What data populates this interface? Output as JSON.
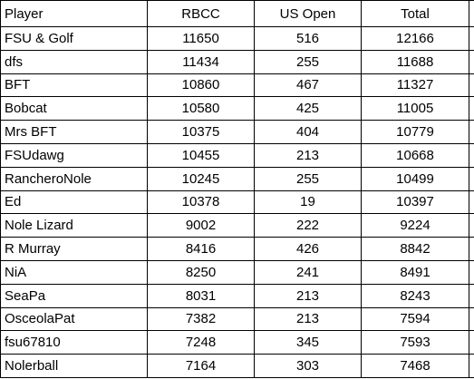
{
  "table": {
    "header": [
      "Player",
      "RBCC",
      "US Open",
      "Total"
    ],
    "rows": [
      [
        "FSU & Golf",
        11650,
        516,
        12166
      ],
      [
        "dfs",
        11434,
        255,
        11688
      ],
      [
        "BFT",
        10860,
        467,
        11327
      ],
      [
        "Bobcat",
        10580,
        425,
        11005
      ],
      [
        "Mrs BFT",
        10375,
        404,
        10779
      ],
      [
        "FSUdawg",
        10455,
        213,
        10668
      ],
      [
        "RancheroNole",
        10245,
        255,
        10499
      ],
      [
        "Ed",
        10378,
        19,
        10397
      ],
      [
        "Nole Lizard",
        9002,
        222,
        9224
      ],
      [
        "R Murray",
        8416,
        426,
        8842
      ],
      [
        "NiA",
        8250,
        241,
        8491
      ],
      [
        "SeaPa",
        8031,
        213,
        8243
      ],
      [
        "OsceolaPat",
        7382,
        213,
        7594
      ],
      [
        "fsu67810",
        7248,
        345,
        7593
      ],
      [
        "Nolerball",
        7164,
        303,
        7468
      ]
    ]
  }
}
